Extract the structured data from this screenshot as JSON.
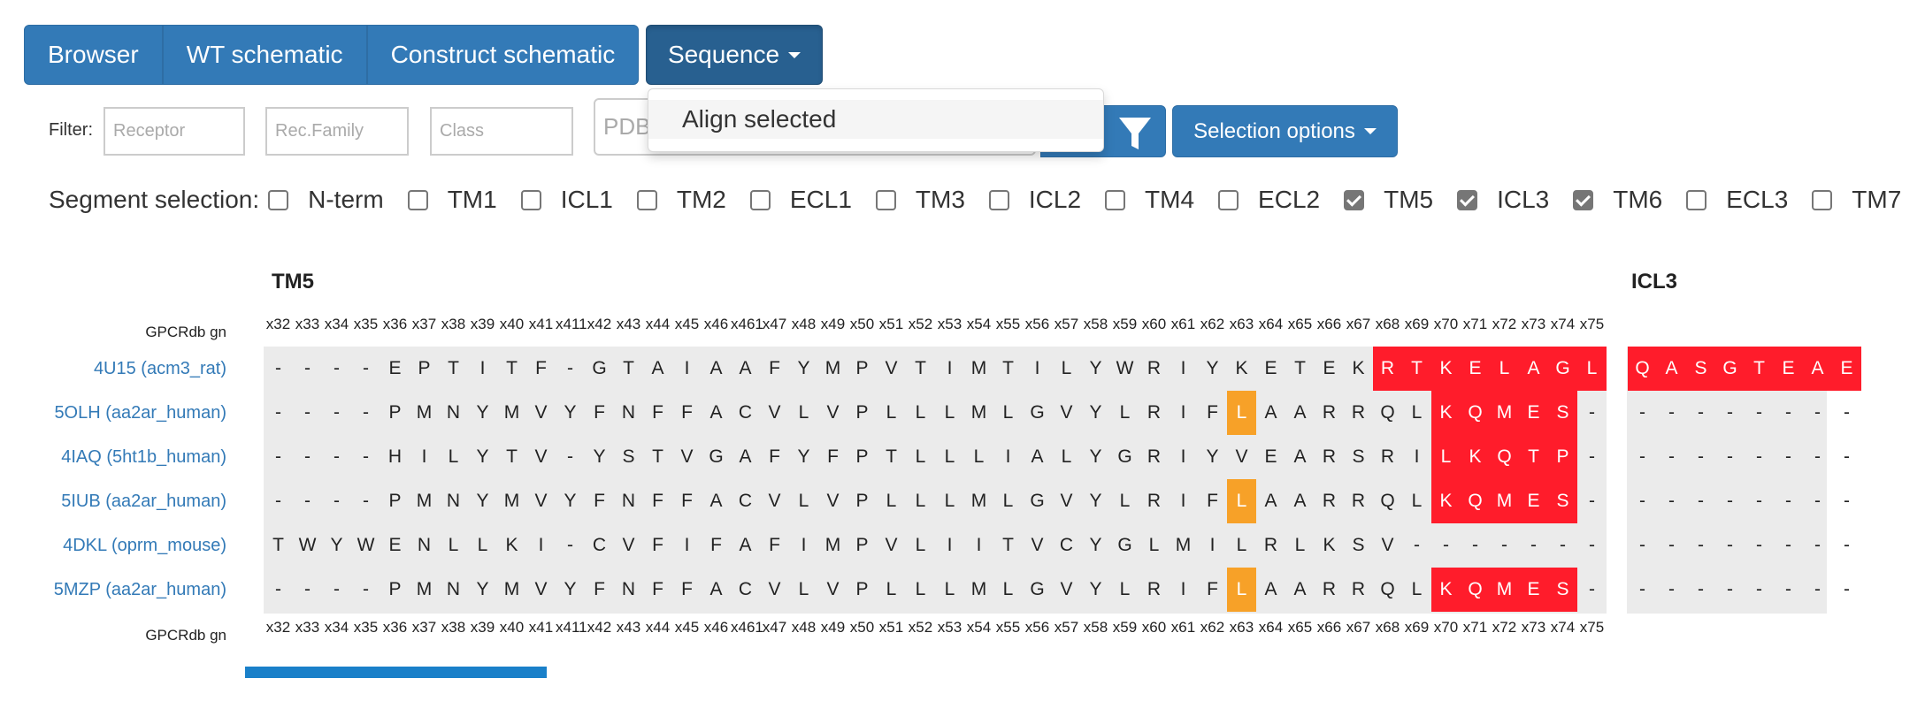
{
  "tabs": [
    "Browser",
    "WT schematic",
    "Construct schematic"
  ],
  "sequence_menu": {
    "label": "Sequence",
    "items": [
      "Align selected"
    ]
  },
  "filter": {
    "label": "Filter:",
    "receptor_placeholder": "Receptor",
    "family_placeholder": "Rec.Family",
    "class_placeholder": "Class",
    "pdb_placeholder": "PDB"
  },
  "selection_options_label": "Selection options",
  "segment_selection": {
    "title": "Segment selection:",
    "options": [
      {
        "label": "N-term",
        "checked": false
      },
      {
        "label": "TM1",
        "checked": false
      },
      {
        "label": "ICL1",
        "checked": false
      },
      {
        "label": "TM2",
        "checked": false
      },
      {
        "label": "ECL1",
        "checked": false
      },
      {
        "label": "TM3",
        "checked": false
      },
      {
        "label": "ICL2",
        "checked": false
      },
      {
        "label": "TM4",
        "checked": false
      },
      {
        "label": "ECL2",
        "checked": false
      },
      {
        "label": "TM5",
        "checked": true
      },
      {
        "label": "ICL3",
        "checked": true
      },
      {
        "label": "TM6",
        "checked": true
      },
      {
        "label": "ECL3",
        "checked": false
      },
      {
        "label": "TM7",
        "checked": false
      }
    ]
  },
  "alignment": {
    "segments": [
      "TM5",
      "ICL3"
    ],
    "gn_label": "GPCRdb gn",
    "gn_numbers": [
      "x32",
      "x33",
      "x34",
      "x35",
      "x36",
      "x37",
      "x38",
      "x39",
      "x40",
      "x41",
      "x411",
      "x42",
      "x43",
      "x44",
      "x45",
      "x46",
      "x461",
      "x47",
      "x48",
      "x49",
      "x50",
      "x51",
      "x52",
      "x53",
      "x54",
      "x55",
      "x56",
      "x57",
      "x58",
      "x59",
      "x60",
      "x61",
      "x62",
      "x63",
      "x64",
      "x65",
      "x66",
      "x67",
      "x68",
      "x69",
      "x70",
      "x71",
      "x72",
      "x73",
      "x74",
      "x75"
    ],
    "colors": {
      "red": "#ff1c2b",
      "orange": "#f7a128",
      "background": "#ebebeb",
      "link": "#337ab7"
    },
    "rows": [
      {
        "name": "4U15 (acm3_rat)",
        "tm5": "----EPTITF-GTAIAAFYMPVTIMTILYWRIYKETEKRTKELAGL",
        "tm5_marks": "......................................RRRRRRRR",
        "icl3": "QASGTEAE",
        "icl3_marks": "RRRRRRRR"
      },
      {
        "name": "5OLH (aa2ar_human)",
        "tm5": "----PMNYMVYFNFFACVLVPLLLMLGVYLRIFLAARRQLKQMES-",
        "tm5_marks": ".................................O......RRRRR.",
        "icl3": "--------",
        "icl3_marks": "........"
      },
      {
        "name": "4IAQ (5ht1b_human)",
        "tm5": "----HILYTV-YSTVGAFYFPTLLLIALYGRIYVEARSRILKQTP-",
        "tm5_marks": "........................................RRRRR.",
        "icl3": "--------",
        "icl3_marks": "........"
      },
      {
        "name": "5IUB (aa2ar_human)",
        "tm5": "----PMNYMVYFNFFACVLVPLLLMLGVYLRIFLAARRQLKQMES-",
        "tm5_marks": ".................................O......RRRRR.",
        "icl3": "--------",
        "icl3_marks": "........"
      },
      {
        "name": "4DKL (oprm_mouse)",
        "tm5": "TWYWENLLKI-CVFIFAFIMPVLIITVCYGLMILRLKSV-------",
        "tm5_marks": "..............................................",
        "icl3": "--------",
        "icl3_marks": "........"
      },
      {
        "name": "5MZP (aa2ar_human)",
        "tm5": "----PMNYMVYFNFFACVLVPLLLMLGVYLRIFLAARRQLKQMES-",
        "tm5_marks": ".................................O......RRRRR.",
        "icl3": "--------",
        "icl3_marks": "........"
      }
    ]
  }
}
